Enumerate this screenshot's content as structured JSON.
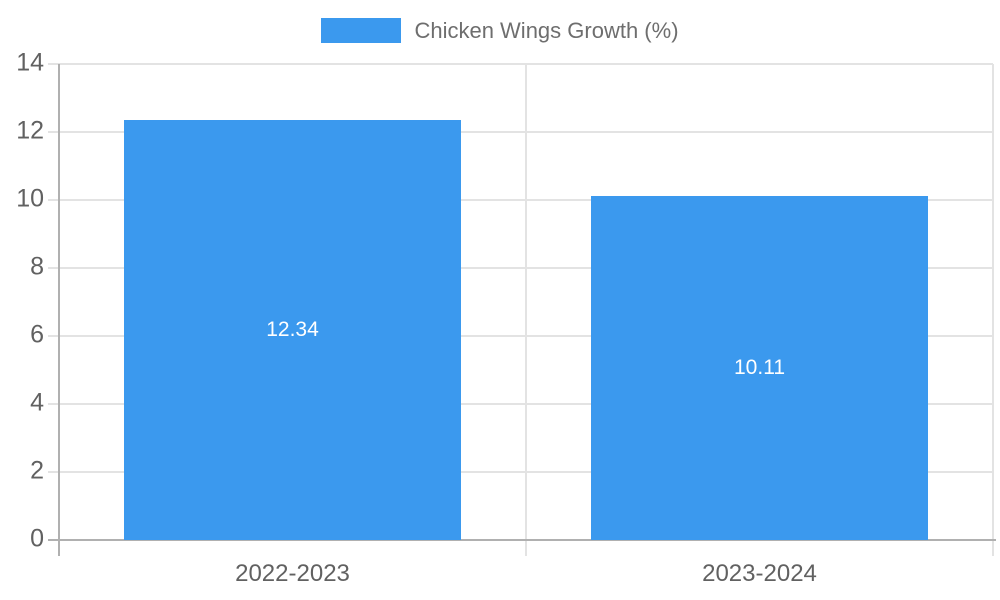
{
  "chart_data": {
    "type": "bar",
    "title": "",
    "legend": "Chicken Wings Growth (%)",
    "legend_position": "top",
    "categories": [
      "2022-2023",
      "2023-2024"
    ],
    "values": [
      12.34,
      10.11
    ],
    "value_labels": [
      "12.34",
      "10.11"
    ],
    "xlabel": "",
    "ylabel": "",
    "ylim": [
      0,
      14
    ],
    "y_ticks": [
      0,
      2,
      4,
      6,
      8,
      10,
      12,
      14
    ],
    "grid": true,
    "bar_color": "#3b99ee",
    "value_label_color": "#ffffff",
    "gridline_color": "#e3e3e3",
    "axis_line_color": "#b0b0b0",
    "tick_label_color": "#616161",
    "legend_text_color": "#6e6e6e"
  }
}
